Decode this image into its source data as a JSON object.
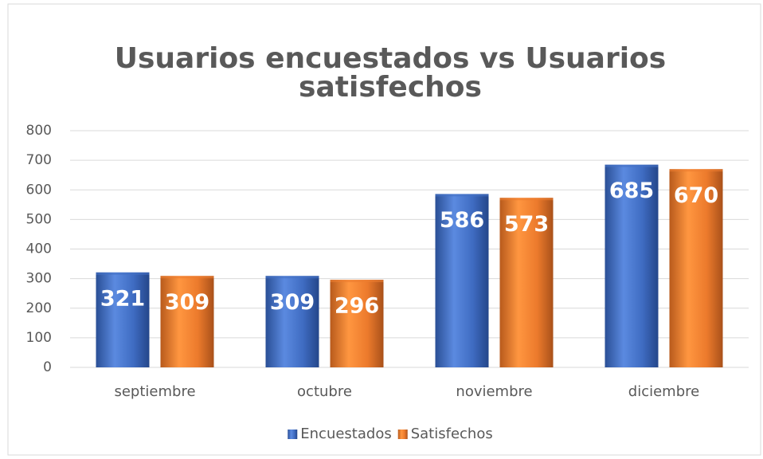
{
  "chart_data": {
    "type": "bar",
    "title": "Usuarios encuestados vs Usuarios satisfechos",
    "categories": [
      "septiembre",
      "octubre",
      "noviembre",
      "diciembre"
    ],
    "series": [
      {
        "name": "Encuestados",
        "color": "#4472c4",
        "values": [
          321,
          309,
          586,
          685
        ]
      },
      {
        "name": "Satisfechos",
        "color": "#ed7d31",
        "values": [
          309,
          296,
          573,
          670
        ]
      }
    ],
    "ylim": [
      0,
      800
    ],
    "yticks": [
      0,
      100,
      200,
      300,
      400,
      500,
      600,
      700,
      800
    ],
    "grid": true,
    "legend": "bottom"
  }
}
